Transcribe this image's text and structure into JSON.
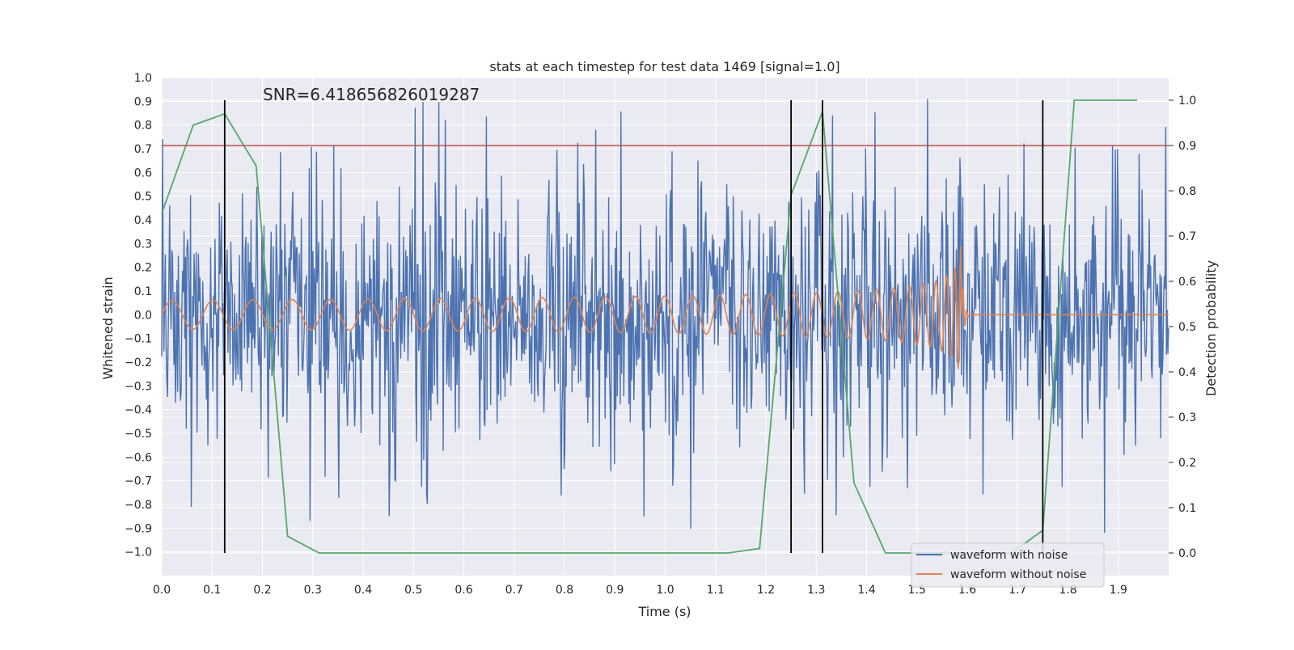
{
  "chart_data": {
    "type": "line",
    "title": "stats at each timestep for test data 1469 [signal=1.0]",
    "annotation": "SNR=6.418656826019287",
    "xlabel": "Time (s)",
    "ylabel_left": "Whitened strain",
    "ylabel_right": "Detection probability",
    "xlim": [
      0.0,
      2.0
    ],
    "ylim_left": [
      -1.1,
      1.0
    ],
    "ylim_right": [
      -0.05,
      1.05
    ],
    "x_ticks": [
      "0.0",
      "0.1",
      "0.2",
      "0.3",
      "0.4",
      "0.5",
      "0.6",
      "0.7",
      "0.8",
      "0.9",
      "1.0",
      "1.1",
      "1.2",
      "1.3",
      "1.4",
      "1.5",
      "1.6",
      "1.7",
      "1.8",
      "1.9"
    ],
    "y_left_ticks": [
      "1.0",
      "0.9",
      "0.8",
      "0.7",
      "0.6",
      "0.5",
      "0.4",
      "0.3",
      "0.2",
      "0.1",
      "0.0",
      "−0.1",
      "−0.2",
      "−0.3",
      "−0.4",
      "−0.5",
      "−0.6",
      "−0.7",
      "−0.8",
      "−0.9",
      "−1.0"
    ],
    "y_right_ticks": [
      "0.0",
      "0.1",
      "0.2",
      "0.3",
      "0.4",
      "0.5",
      "0.6",
      "0.7",
      "0.8",
      "0.9",
      "1.0"
    ],
    "threshold": 0.9,
    "detection_markers": [
      0.125,
      1.25,
      1.3125,
      1.75
    ],
    "series": [
      {
        "name": "waveform with noise",
        "color": "#4c72b0",
        "axis": "left",
        "kind": "noise",
        "range": [
          -1.0,
          0.91
        ]
      },
      {
        "name": "waveform without noise",
        "color": "#dd8452",
        "axis": "left",
        "kind": "chirp",
        "merger_time": 1.59,
        "peak_amplitude": 0.35
      },
      {
        "name": "detection probability",
        "color": "#55a868",
        "axis": "right",
        "x": [
          0.0,
          0.0625,
          0.125,
          0.1875,
          0.25,
          0.3125,
          0.375,
          1.125,
          1.1875,
          1.25,
          1.3125,
          1.375,
          1.4375,
          1.5,
          1.5625,
          1.625,
          1.6875,
          1.75,
          1.8125,
          1.875,
          1.9375
        ],
        "values": [
          0.75,
          0.945,
          0.97,
          0.855,
          0.037,
          0.0,
          0.0,
          0.0,
          0.01,
          0.79,
          0.975,
          0.155,
          0.0,
          0.0,
          0.0,
          0.0,
          0.0,
          0.05,
          1.0,
          1.0,
          1.0
        ]
      }
    ],
    "threshold_color": "#c44e52",
    "marker_color": "#000000",
    "legend": [
      "waveform with noise",
      "waveform without noise"
    ],
    "legend_position": "lower-right"
  }
}
